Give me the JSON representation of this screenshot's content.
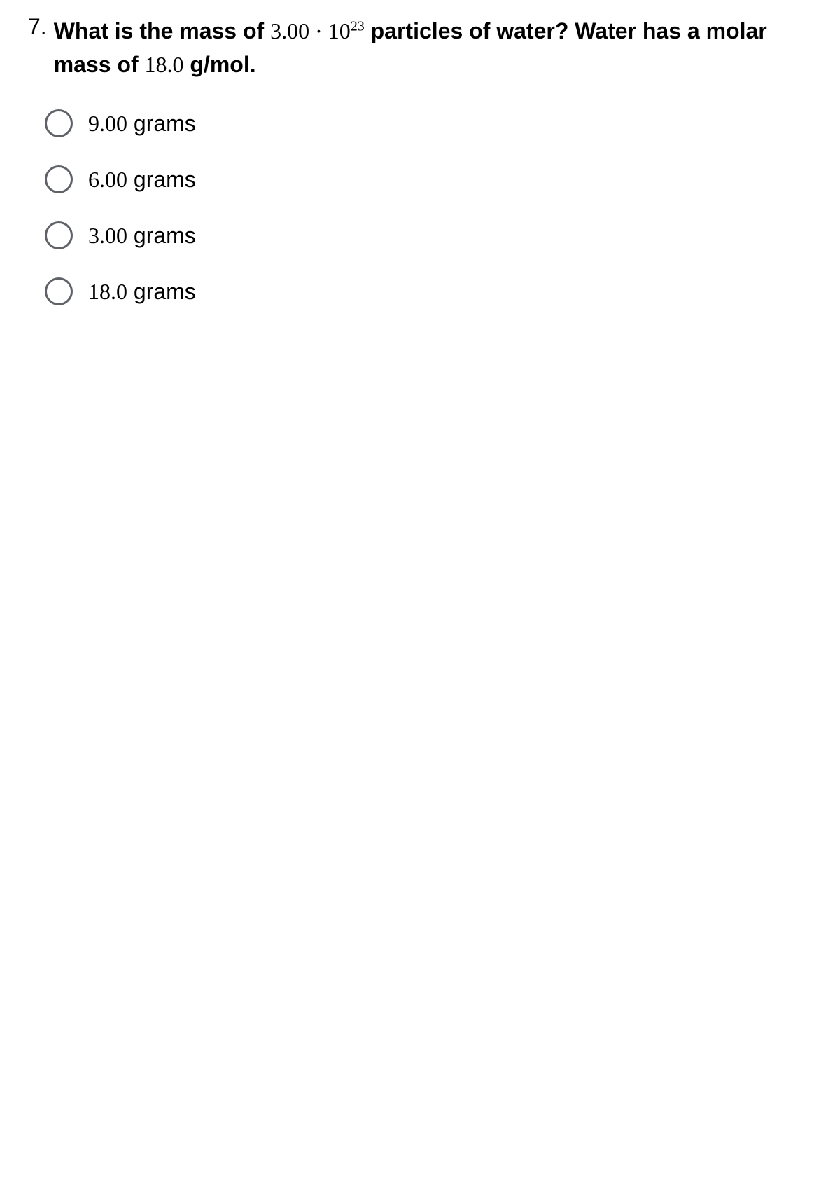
{
  "question": {
    "number": "7.",
    "text_part1": "What is the mass of ",
    "value_coefficient": "3.00",
    "multiply_symbol": " · ",
    "value_base": "10",
    "value_exponent": "23",
    "text_part2": " particles of water? Water has a molar mass of ",
    "molar_mass": "18.0",
    "text_part3": " g/mol."
  },
  "options": [
    {
      "value": "9.00",
      "unit": " grams"
    },
    {
      "value": "6.00",
      "unit": " grams"
    },
    {
      "value": "3.00",
      "unit": " grams"
    },
    {
      "value": "18.0",
      "unit": " grams"
    }
  ],
  "styling": {
    "body_background": "#ffffff",
    "text_color": "#000000",
    "radio_border_color": "#5f6368",
    "question_fontsize": 32,
    "option_fontsize": 32,
    "radio_size": 40,
    "radio_border_width": 3
  }
}
